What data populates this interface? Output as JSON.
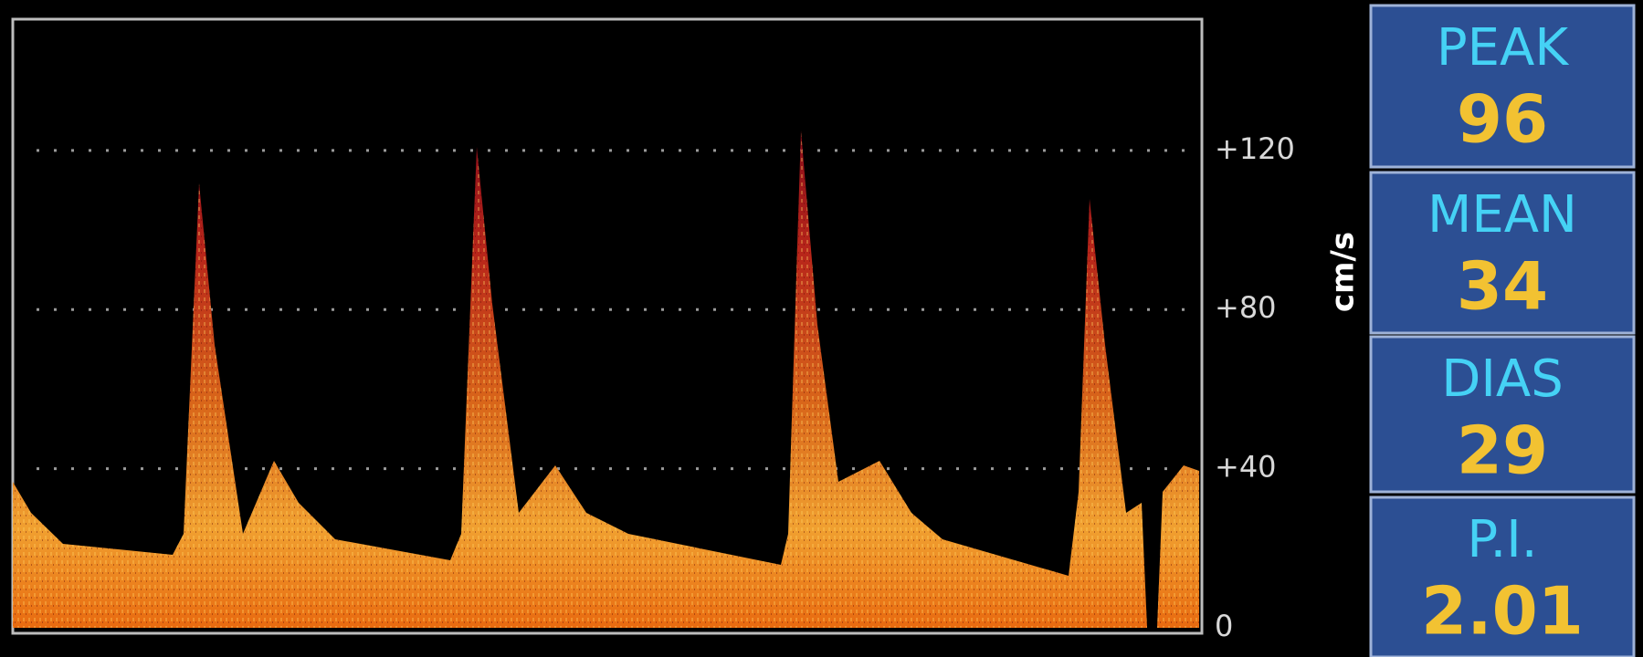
{
  "scale": {
    "unit": "cm/s",
    "ylim": [
      0,
      153
    ],
    "ticks": [
      {
        "value": 120,
        "label": "+120"
      },
      {
        "value": 80,
        "label": "+80"
      },
      {
        "value": 40,
        "label": "+40"
      },
      0
    ]
  },
  "panel": [
    {
      "label": "PEAK",
      "value": 96
    },
    {
      "label": "MEAN",
      "value": 34
    },
    {
      "label": "DIAS",
      "value": 29
    },
    {
      "label": "P.I.",
      "value": 2.01
    }
  ]
}
